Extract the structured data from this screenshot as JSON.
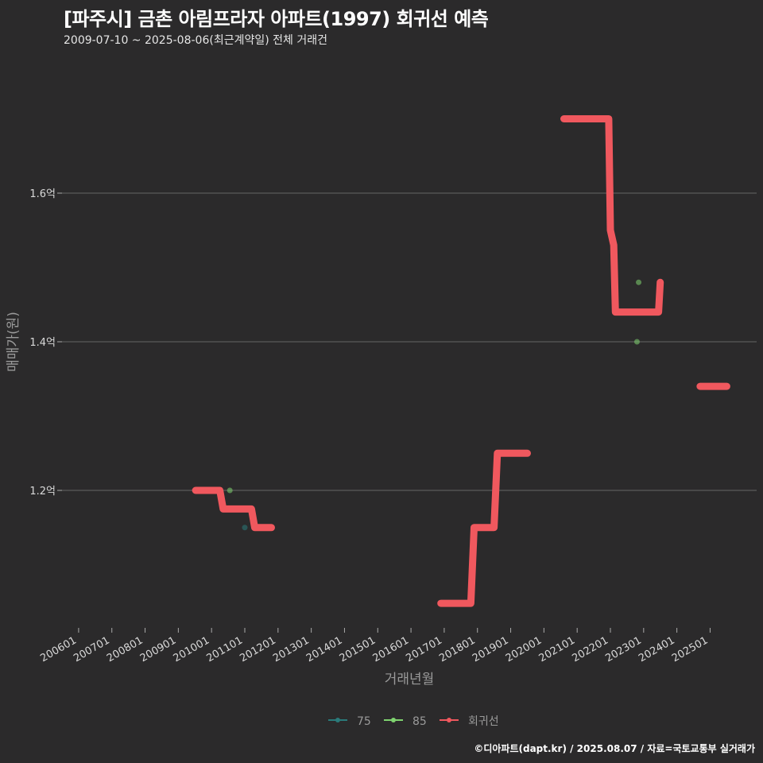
{
  "header": {
    "title": "[파주시] 금촌 아림프라자 아파트(1997) 회귀선 예측",
    "subtitle": "2009-07-10 ~ 2025-08-06(최근계약일) 전체 거래건"
  },
  "footer": {
    "caption": "©디아파트(dapt.kr) / 2025.08.07 / 자료=국토교통부 실거래가"
  },
  "colors": {
    "background": "#2b2a2b",
    "grid": "#666666",
    "regression": "#f0585e",
    "s75": "#2a7a7a",
    "s85": "#7fd36f"
  },
  "chart_data": {
    "type": "line",
    "title": "[파주시] 금촌 아림프라자 아파트(1997) 회귀선 예측",
    "xlabel": "거래년월",
    "ylabel": "매매가(원)",
    "x_ticks": [
      "200601",
      "200701",
      "200801",
      "200901",
      "201001",
      "201101",
      "201201",
      "201301",
      "201401",
      "201501",
      "201601",
      "201701",
      "201801",
      "201901",
      "202001",
      "202101",
      "202201",
      "202301",
      "202401",
      "202501"
    ],
    "y_ticks": [
      {
        "value": 1.2,
        "label": "1.2억"
      },
      {
        "value": 1.4,
        "label": "1.4억"
      },
      {
        "value": 1.6,
        "label": "1.6억"
      }
    ],
    "ylim": [
      1.015,
      1.785
    ],
    "xlim": [
      2005.5,
      2026.4
    ],
    "grid": true,
    "legend_position": "bottom",
    "legend": [
      {
        "key": "s75",
        "label": "75"
      },
      {
        "key": "s85",
        "label": "85"
      },
      {
        "key": "regression",
        "label": "회귀선"
      }
    ],
    "series": [
      {
        "name": "75",
        "kind": "points",
        "color_key": "s75",
        "points": [
          [
            2011.0,
            1.15
          ]
        ]
      },
      {
        "name": "85",
        "kind": "points",
        "color_key": "s85",
        "points": [
          [
            2010.55,
            1.2
          ],
          [
            2022.8,
            1.4
          ],
          [
            2022.85,
            1.48
          ]
        ]
      },
      {
        "name": "회귀선",
        "kind": "line",
        "color_key": "regression",
        "segments": [
          [
            [
              2009.52,
              1.2
            ],
            [
              2010.25,
              1.2
            ],
            [
              2010.35,
              1.175
            ],
            [
              2011.2,
              1.175
            ],
            [
              2011.3,
              1.15
            ],
            [
              2011.8,
              1.15
            ]
          ],
          [
            [
              2016.9,
              1.048
            ],
            [
              2017.8,
              1.048
            ],
            [
              2017.9,
              1.15
            ],
            [
              2018.5,
              1.15
            ],
            [
              2018.6,
              1.25
            ],
            [
              2019.5,
              1.25
            ]
          ],
          [
            [
              2020.6,
              1.7
            ],
            [
              2021.95,
              1.7
            ],
            [
              2022.0,
              1.55
            ],
            [
              2022.1,
              1.53
            ],
            [
              2022.15,
              1.44
            ],
            [
              2023.45,
              1.44
            ],
            [
              2023.5,
              1.48
            ]
          ],
          [
            [
              2024.7,
              1.34
            ],
            [
              2025.5,
              1.34
            ]
          ]
        ]
      }
    ]
  }
}
